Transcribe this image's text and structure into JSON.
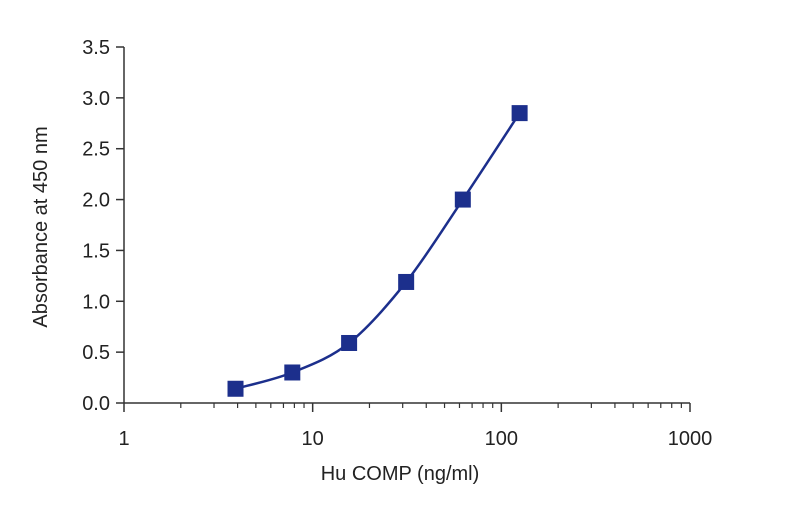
{
  "chart_data": {
    "type": "scatter",
    "xlabel": "Hu COMP (ng/ml)",
    "ylabel": "Absorbance at 450 nm",
    "xscale": "log",
    "xlim": [
      1,
      1000
    ],
    "ylim": [
      0,
      3.5
    ],
    "xticks": [
      1,
      10,
      100,
      1000
    ],
    "xtick_labels": [
      "1",
      "10",
      "100",
      "1000"
    ],
    "yticks": [
      0,
      0.5,
      1.0,
      1.5,
      2.0,
      2.5,
      3.0,
      3.5
    ],
    "ytick_labels": [
      "0.0",
      "0.5",
      "1.0",
      "1.5",
      "2.0",
      "2.5",
      "3.0",
      "3.5"
    ],
    "grid": false,
    "legend": "none",
    "series": [
      {
        "x": [
          3.9,
          7.8,
          15.6,
          31.3,
          62.5,
          125
        ],
        "y": [
          0.14,
          0.3,
          0.59,
          1.19,
          2.0,
          2.85
        ],
        "color": "#1c2f8c",
        "marker": "square",
        "fit_line": true
      }
    ]
  }
}
